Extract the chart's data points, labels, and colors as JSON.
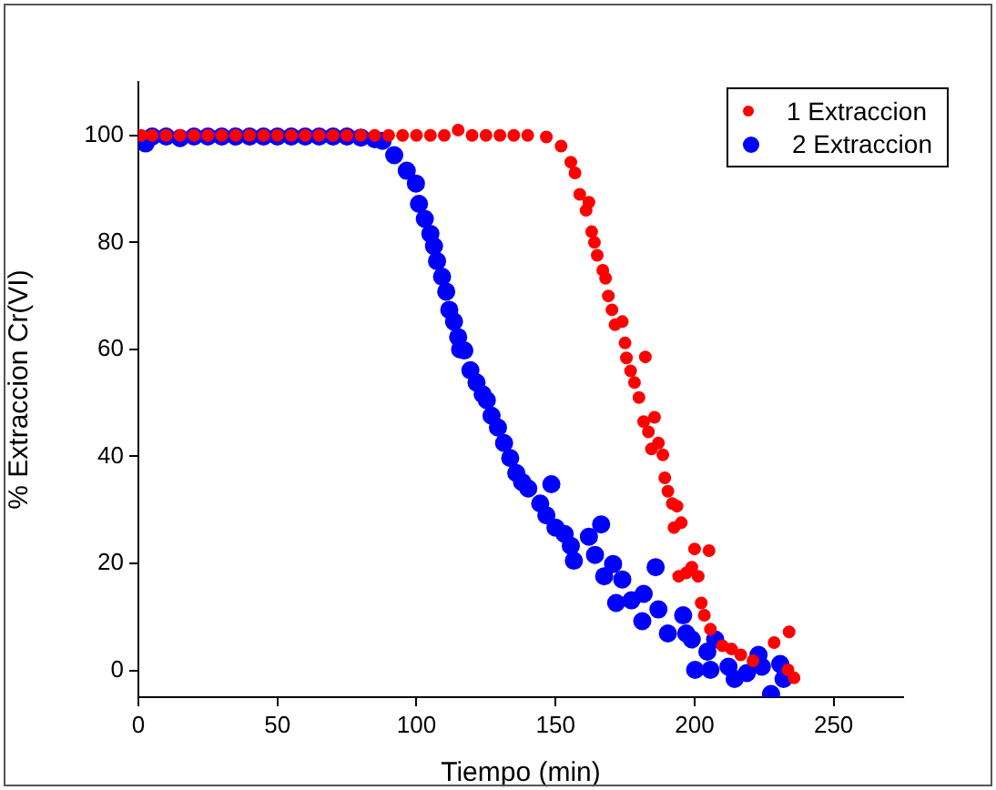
{
  "chart_data": {
    "type": "scatter",
    "xlabel": "Tiempo (min)",
    "ylabel": "% Extraccion Cr(VI)",
    "xlim": [
      0,
      275
    ],
    "ylim": [
      -5,
      110
    ],
    "xticks": [
      0,
      50,
      100,
      150,
      200,
      250
    ],
    "yticks": [
      0,
      20,
      40,
      60,
      80,
      100
    ],
    "grid": false,
    "legend": "top right",
    "marker": "circle",
    "series": [
      {
        "name": "1 Extraccion",
        "color": "#ff0000",
        "x": [
          1,
          5,
          10,
          15,
          20,
          25,
          30,
          35,
          40,
          45,
          50,
          55,
          60,
          65,
          70,
          75,
          80,
          85,
          90,
          95,
          100,
          105,
          110,
          115,
          120,
          125,
          130,
          135,
          140,
          146.7,
          152,
          155.5,
          157,
          158.7,
          161,
          162,
          163,
          164,
          165,
          167,
          168,
          169,
          170.3,
          171.4,
          174,
          175,
          175.5,
          177,
          178.4,
          180,
          181.7,
          182.3,
          183.4,
          184.5,
          185.6,
          187,
          188.6,
          189.3,
          190.4,
          192,
          192.6,
          193.7,
          194.3,
          195.2,
          197,
          199,
          200,
          201.3,
          202.4,
          203.5,
          205.2,
          205.7,
          210,
          213.3,
          216.6,
          221,
          228.6,
          233.6,
          234,
          235.8
        ],
        "values": [
          100,
          100,
          100,
          100,
          100,
          100,
          100,
          100,
          100,
          100,
          100,
          100,
          100,
          100,
          100,
          100,
          100,
          100,
          100,
          100,
          100,
          100,
          100,
          101,
          100,
          100,
          100,
          100,
          100,
          99.7,
          98,
          95,
          93,
          89,
          86,
          87.5,
          82,
          80,
          77.6,
          74.8,
          73.3,
          70,
          67.4,
          64.6,
          65.2,
          61.2,
          58.4,
          56,
          53.8,
          51,
          46.5,
          58.6,
          44.6,
          41.4,
          47.3,
          42.5,
          40.3,
          36,
          33.5,
          31.2,
          26.7,
          30.7,
          17.6,
          27.6,
          18.2,
          19.3,
          22.7,
          17.6,
          12.6,
          10.3,
          22.4,
          7.7,
          4.6,
          4,
          2.9,
          1.8,
          5.2,
          0.1,
          7.2,
          -1.4
        ]
      },
      {
        "name": "2 Extraccion",
        "color": "#0000ff",
        "x": [
          2.6,
          5,
          10,
          15,
          20,
          25,
          30,
          35,
          40,
          45,
          50,
          55,
          60,
          65,
          70,
          75,
          80,
          85,
          87.8,
          92,
          96.5,
          99.8,
          100.9,
          103,
          105,
          106.3,
          107.4,
          109.2,
          110.7,
          111.8,
          113.5,
          115,
          115.7,
          117.2,
          119.4,
          121.6,
          123.8,
          125.3,
          127,
          129.3,
          131.5,
          133.7,
          135.9,
          138,
          140.2,
          144.5,
          146.7,
          148.5,
          150,
          153.3,
          155.5,
          156.6,
          162,
          164.2,
          166.4,
          167.5,
          170.7,
          171.8,
          174,
          177.3,
          181.2,
          181.7,
          186,
          187,
          190.4,
          195.9,
          197,
          199,
          200.2,
          204.6,
          205.7,
          207.4,
          212.2,
          214.4,
          218.8,
          223,
          224.2,
          227.5,
          230.8,
          232
        ],
        "values": [
          98.5,
          99.8,
          99.8,
          99.5,
          99.8,
          99.8,
          99.8,
          99.8,
          99.8,
          99.8,
          99.8,
          99.8,
          99.8,
          99.8,
          99.8,
          99.8,
          99.6,
          99.3,
          99,
          96.3,
          93.4,
          91,
          87.2,
          84.4,
          81.6,
          79.3,
          76.5,
          73.6,
          70.8,
          67.4,
          65.2,
          62.3,
          60,
          59.8,
          56.1,
          53.8,
          51.6,
          50.5,
          47.6,
          45.4,
          42.5,
          39.7,
          36.9,
          35.2,
          34,
          31.2,
          29,
          34.8,
          26.7,
          25.5,
          23.3,
          20.5,
          25,
          21.6,
          27.3,
          17.6,
          19.9,
          12.6,
          17,
          13.1,
          9.2,
          14.3,
          19.3,
          11.4,
          6.9,
          10.3,
          6.9,
          5.8,
          0.1,
          3.5,
          0.1,
          5.8,
          0.7,
          -1.6,
          -0.5,
          2.9,
          0.7,
          -4.4,
          1.2,
          -1.6
        ]
      }
    ]
  }
}
